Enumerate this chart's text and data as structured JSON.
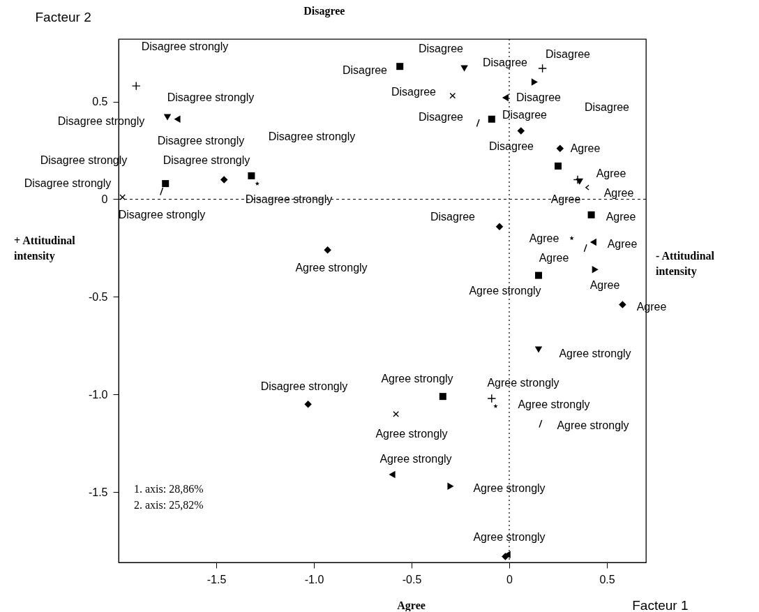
{
  "chart_data": {
    "type": "scatter",
    "title": "Disagree",
    "xlabel": "Facteur 1",
    "ylabel": "Facteur 2",
    "xlim": [
      -2.0,
      0.7
    ],
    "ylim": [
      -1.86,
      0.82
    ],
    "xticks": [
      -1.5,
      {
        "value": -1,
        "label": "-1.0"
      },
      -0.5,
      0,
      0.5
    ],
    "yticks": [
      0.5,
      0,
      -0.5,
      {
        "value": -1,
        "label": "-1.0"
      },
      -1.5
    ],
    "grid": false,
    "ref_lines": [
      {
        "axis": "x",
        "value": 0,
        "line_style": "dotted",
        "color": "#000000"
      },
      {
        "axis": "y",
        "value": 0,
        "line_style": "dashed",
        "color": "#000000"
      }
    ],
    "series": [
      {
        "marker": "square",
        "color": "#000000",
        "x": [
          -0.56,
          -0.09,
          0.25,
          0.42,
          0.15,
          -0.34,
          -1.32,
          -1.76
        ],
        "values": [
          0.68,
          0.41,
          0.17,
          -0.08,
          -0.39,
          -1.01,
          0.12,
          0.08
        ]
      },
      {
        "marker": "diamond",
        "color": "#000000",
        "x": [
          -1.46,
          -0.93,
          -1.03,
          -0.05,
          0.06,
          0.26,
          0.58,
          -0.02
        ],
        "values": [
          0.1,
          -0.26,
          -1.05,
          -0.14,
          0.35,
          0.26,
          -0.54,
          -1.83
        ]
      },
      {
        "marker": "triangle-down",
        "color": "#000000",
        "x": [
          -1.75,
          -0.23,
          0.36,
          0.15
        ],
        "values": [
          0.42,
          0.67,
          0.09,
          -0.77
        ]
      },
      {
        "marker": "triangle-left",
        "color": "#000000",
        "x": [
          -1.7,
          -0.02,
          0.43,
          -0.6,
          -0.01
        ],
        "values": [
          0.41,
          0.52,
          -0.22,
          -1.41,
          -1.82
        ]
      },
      {
        "marker": "triangle-right",
        "color": "#000000",
        "x": [
          0.13,
          0.44,
          -0.3
        ],
        "values": [
          0.6,
          -0.36,
          -1.47
        ]
      },
      {
        "marker": "plus",
        "color": "#000000",
        "x": [
          -1.91,
          0.17,
          0.35,
          -0.09
        ],
        "values": [
          0.58,
          0.67,
          0.1,
          -1.02
        ]
      },
      {
        "marker": "cross",
        "color": "#000000",
        "x": [
          -0.29,
          -1.98,
          -0.58
        ],
        "values": [
          0.53,
          0.01,
          -1.1
        ]
      },
      {
        "marker": "star",
        "color": "#000000",
        "x": [
          -1.29,
          0.32,
          -0.07
        ],
        "values": [
          0.08,
          -0.2,
          -1.06
        ]
      },
      {
        "color": "#000000",
        "x": [
          -1.78,
          -0.16,
          0.39,
          0.16
        ],
        "values": [
          0.04,
          0.39,
          -0.25,
          -1.15
        ]
      },
      {
        "color": "#000000",
        "x": [
          0.4
        ],
        "values": [
          0.06
        ]
      }
    ],
    "annotations": [
      "Agree",
      "+ Attitudinal intensity",
      "- Attitudinal intensity",
      "1. axis: 28,86%",
      "2. axis: 25,82%",
      "Disagree strongly",
      "Disagree strongly",
      "Disagree strongly",
      "Disagree strongly",
      "Disagree strongly",
      "Disagree strongly",
      "Disagree strongly",
      "Disagree strongly",
      "Disagree strongly",
      "Disagree strongly",
      "Disagree",
      "Disagree",
      "Disagree",
      "Disagree",
      "Disagree",
      "Disagree",
      "Disagree",
      "Disagree",
      "Disagree",
      "Disagree",
      "Disagree",
      "Agree",
      "Agree",
      "Agree",
      "Agree",
      "Agree",
      "Agree",
      "Agree",
      "Agree",
      "Agree",
      "Agree",
      "Agree strongly",
      "Agree strongly",
      "Agree strongly",
      "Disagree strongly",
      "Agree strongly",
      "Agree strongly",
      "Agree strongly",
      "Agree strongly",
      "Agree strongly",
      "Agree strongly",
      "Agree strongly",
      "Agree strongly"
    ]
  }
}
